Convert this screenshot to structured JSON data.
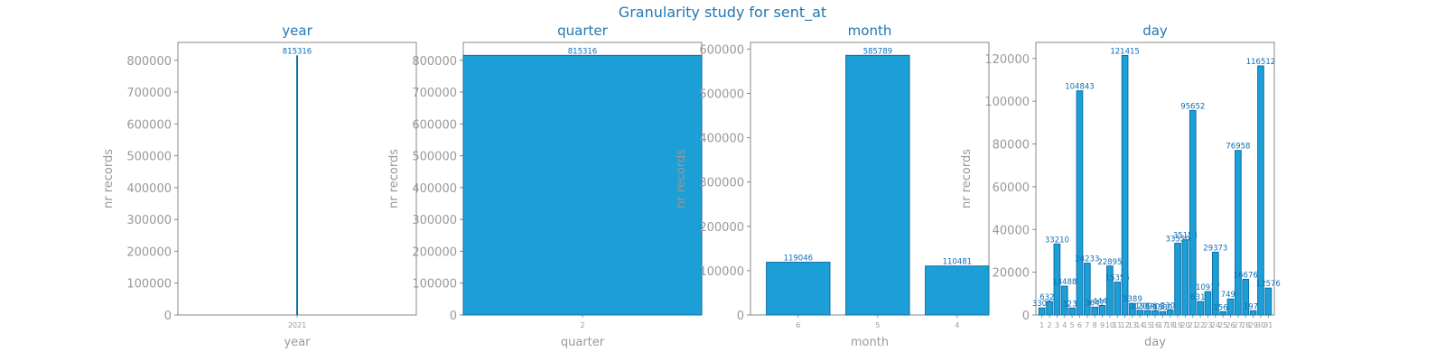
{
  "figure": {
    "title": "Granularity study for sent_at"
  },
  "colors": {
    "bar_fill": "#1b9fd6",
    "bar_edge": "#0f6fa6",
    "label": "#0d6eb8",
    "axis_text": "#999999",
    "frame": "#888888",
    "title": "#1f77b4"
  },
  "chart_data": [
    {
      "type": "bar",
      "title": "year",
      "xlabel": "year",
      "ylabel": "nr records",
      "categories": [
        "2021"
      ],
      "values": [
        815316
      ],
      "value_labels": [
        "815316"
      ],
      "ylim": [
        0,
        856000
      ],
      "yticks": [
        0,
        100000,
        200000,
        300000,
        400000,
        500000,
        600000,
        700000,
        800000
      ],
      "ytick_labels": [
        "0",
        "100000",
        "200000",
        "300000",
        "400000",
        "500000",
        "600000",
        "700000",
        "800000"
      ],
      "grid": false
    },
    {
      "type": "bar",
      "title": "quarter",
      "xlabel": "quarter",
      "ylabel": "nr records",
      "categories": [
        "2"
      ],
      "values": [
        815316
      ],
      "value_labels": [
        "815316"
      ],
      "ylim": [
        0,
        856000
      ],
      "yticks": [
        0,
        100000,
        200000,
        300000,
        400000,
        500000,
        600000,
        700000,
        800000
      ],
      "ytick_labels": [
        "0",
        "100000",
        "200000",
        "300000",
        "400000",
        "500000",
        "600000",
        "700000",
        "800000"
      ],
      "grid": false
    },
    {
      "type": "bar",
      "title": "month",
      "xlabel": "month",
      "ylabel": "nr records",
      "categories": [
        "6",
        "5",
        "4"
      ],
      "values": [
        119046,
        585789,
        110481
      ],
      "value_labels": [
        "119046",
        "585789",
        "110481"
      ],
      "ylim": [
        0,
        615000
      ],
      "yticks": [
        0,
        100000,
        200000,
        300000,
        400000,
        500000,
        600000
      ],
      "ytick_labels": [
        "0",
        "100000",
        "200000",
        "300000",
        "400000",
        "500000",
        "600000"
      ],
      "grid": false
    },
    {
      "type": "bar",
      "title": "day",
      "xlabel": "day",
      "ylabel": "nr records",
      "categories": [
        "1",
        "2",
        "3",
        "4",
        "5",
        "6",
        "7",
        "8",
        "9",
        "10",
        "11",
        "12",
        "13",
        "14",
        "15",
        "16",
        "17",
        "18",
        "19",
        "20",
        "21",
        "22",
        "23",
        "24",
        "25",
        "26",
        "27",
        "28",
        "29",
        "30",
        "31"
      ],
      "values": [
        3300,
        6326,
        33210,
        13488,
        3230,
        104843,
        24233,
        3647,
        4447,
        22895,
        15355,
        121415,
        5389,
        2196,
        2096,
        1905,
        1530,
        2302,
        33550,
        35153,
        95652,
        6310,
        10937,
        29373,
        1568,
        7497,
        76958,
        16676,
        1975,
        116512,
        12576
      ],
      "value_labels": [
        "3300",
        "6326",
        "33210",
        "13488",
        "3230",
        "104843",
        "24233",
        "3647",
        "4447",
        "22895",
        "15355",
        "121415",
        "5389",
        "2196",
        "2096",
        "1905",
        "1530",
        "2302",
        "33550",
        "35153",
        "95652",
        "6310",
        "10937",
        "29373",
        "1568",
        "7497",
        "76958",
        "16676",
        "1975",
        "116512",
        "12576"
      ],
      "ylim": [
        0,
        127500
      ],
      "yticks": [
        0,
        20000,
        40000,
        60000,
        80000,
        100000,
        120000
      ],
      "ytick_labels": [
        "0",
        "20000",
        "40000",
        "60000",
        "80000",
        "100000",
        "120000"
      ],
      "grid": false
    }
  ]
}
